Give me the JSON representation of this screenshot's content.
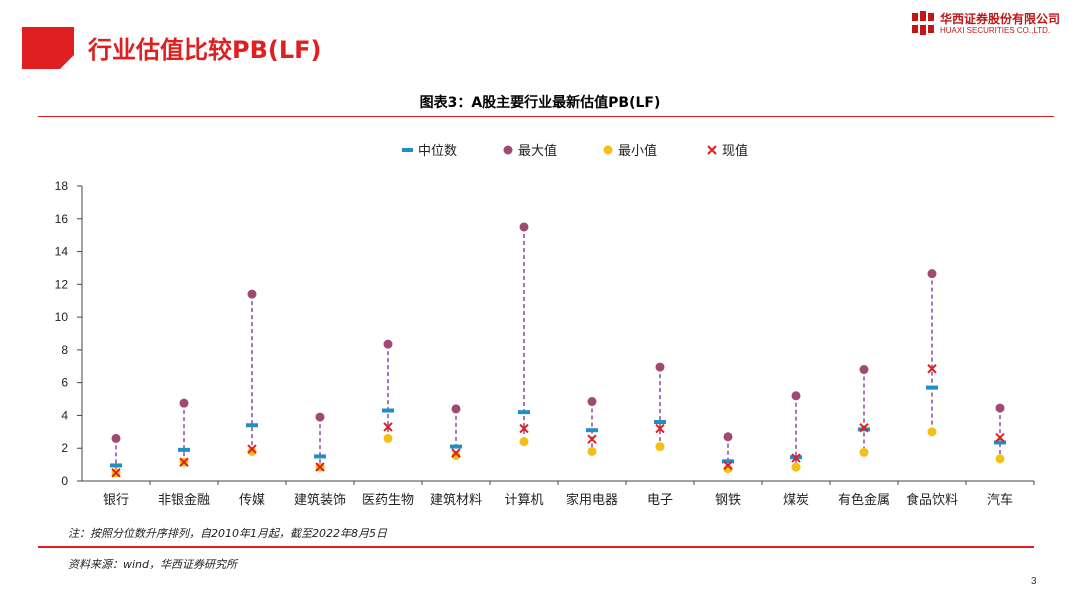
{
  "header": {
    "title": "行业估值比较PB(LF)",
    "logo_cn": "华西证券股份有限公司",
    "logo_en": "HUAXI SECURITIES CO.,LTD."
  },
  "chart_data": {
    "type": "scatter",
    "title": "图表3：A股主要行业最新估值PB(LF)",
    "categories": [
      "银行",
      "非银金融",
      "传媒",
      "建筑装饰",
      "医药生物",
      "建筑材料",
      "计算机",
      "家用电器",
      "电子",
      "钢铁",
      "煤炭",
      "有色金属",
      "食品饮料",
      "汽车"
    ],
    "series": [
      {
        "name": "中位数",
        "marker": "dash",
        "color": "#1f8fc4",
        "values": [
          0.95,
          1.9,
          3.4,
          1.5,
          4.3,
          2.1,
          4.2,
          3.1,
          3.6,
          1.2,
          1.45,
          3.15,
          5.7,
          2.35
        ]
      },
      {
        "name": "最大值",
        "marker": "circle",
        "color": "#9e4a73",
        "values": [
          2.6,
          4.75,
          11.4,
          3.9,
          8.35,
          4.4,
          15.5,
          4.85,
          6.95,
          2.7,
          5.2,
          6.8,
          12.65,
          4.45
        ]
      },
      {
        "name": "最小值",
        "marker": "circle",
        "color": "#f5c016",
        "values": [
          0.5,
          1.15,
          1.8,
          0.85,
          2.6,
          1.55,
          2.4,
          1.8,
          2.1,
          0.75,
          0.85,
          1.75,
          3.0,
          1.35
        ]
      },
      {
        "name": "现值",
        "marker": "x",
        "color": "#e02020",
        "values": [
          0.5,
          1.15,
          1.95,
          0.85,
          3.3,
          1.7,
          3.2,
          2.55,
          3.2,
          0.95,
          1.4,
          3.25,
          6.85,
          2.65
        ]
      }
    ],
    "range_line_color": "#7b2d8e",
    "ylim": [
      0,
      18
    ],
    "yticks": [
      0,
      2,
      4,
      6,
      8,
      10,
      12,
      14,
      16,
      18
    ],
    "yticks_labels": [
      "0",
      "2",
      "4",
      "6",
      "8",
      "10",
      "12",
      "14",
      "16",
      "18"
    ],
    "legend_position": "top-center",
    "grid": false
  },
  "footer": {
    "note": "注：按照分位数升序排列，自2010年1月起，截至2022年8月5日",
    "source": "资料来源：wind，华西证券研究所",
    "page_number": "3"
  }
}
